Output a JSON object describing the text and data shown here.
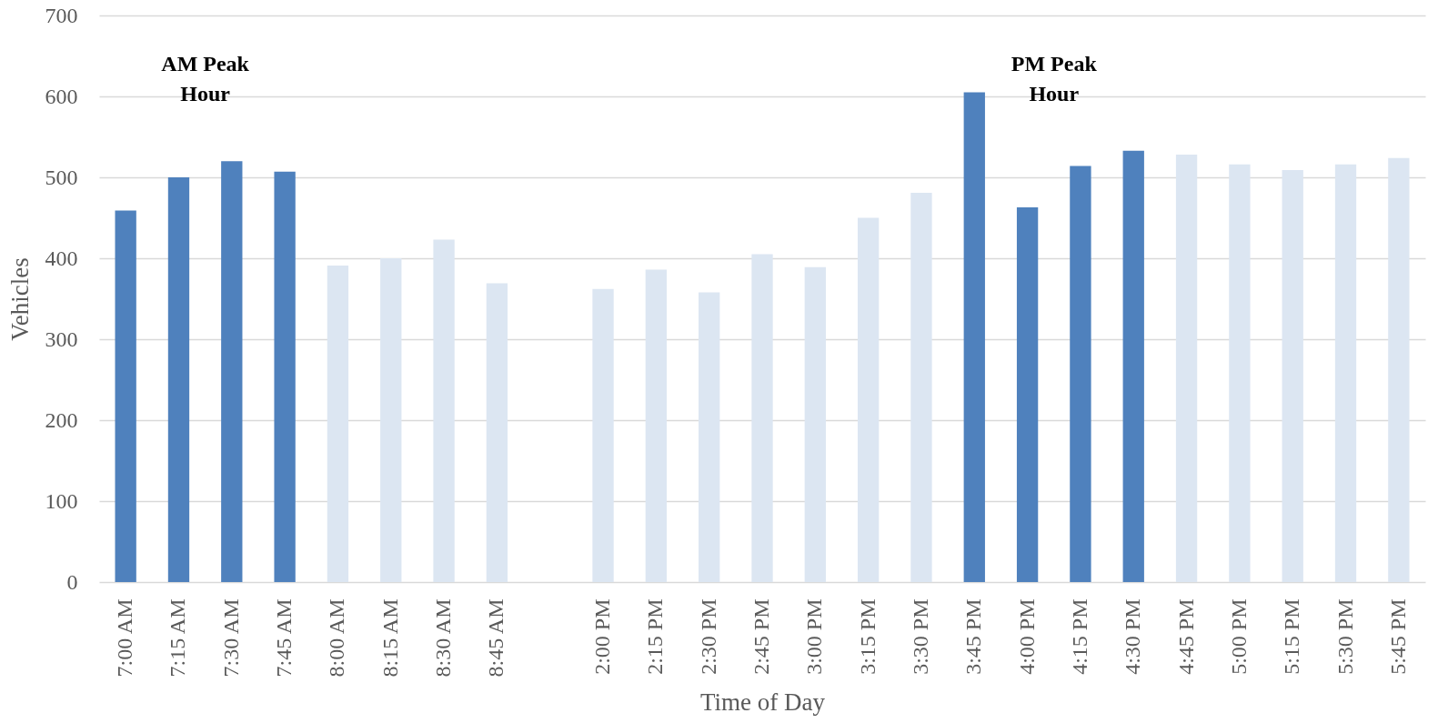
{
  "chart_data": {
    "type": "bar",
    "categories": [
      "7:00 AM",
      "7:15 AM",
      "7:30 AM",
      "7:45 AM",
      "8:00 AM",
      "8:15 AM",
      "8:30 AM",
      "8:45 AM",
      null,
      "2:00 PM",
      "2:15 PM",
      "2:30 PM",
      "2:45 PM",
      "3:00 PM",
      "3:15 PM",
      "3:30 PM",
      "3:45 PM",
      "4:00 PM",
      "4:15 PM",
      "4:30 PM",
      "4:45 PM",
      "5:00 PM",
      "5:15 PM",
      "5:30 PM",
      "5:45 PM"
    ],
    "values": [
      459,
      500,
      520,
      507,
      391,
      400,
      423,
      369,
      null,
      362,
      386,
      358,
      405,
      389,
      450,
      481,
      605,
      463,
      514,
      533,
      528,
      516,
      509,
      516,
      524
    ],
    "colors": [
      "#4f81bd",
      "#4f81bd",
      "#4f81bd",
      "#4f81bd",
      "#dce6f2",
      "#dce6f2",
      "#dce6f2",
      "#dce6f2",
      null,
      "#dce6f2",
      "#dce6f2",
      "#dce6f2",
      "#dce6f2",
      "#dce6f2",
      "#dce6f2",
      "#dce6f2",
      "#4f81bd",
      "#4f81bd",
      "#4f81bd",
      "#4f81bd",
      "#dce6f2",
      "#dce6f2",
      "#dce6f2",
      "#dce6f2",
      "#dce6f2"
    ],
    "xlabel": "Time of Day",
    "ylabel": "Vehicles",
    "ylim": [
      0,
      700
    ],
    "yticks": [
      0,
      100,
      200,
      300,
      400,
      500,
      600,
      700
    ],
    "grid": "y",
    "annotations": [
      "AM Peak\nHour",
      "PM Peak\nHour"
    ]
  }
}
